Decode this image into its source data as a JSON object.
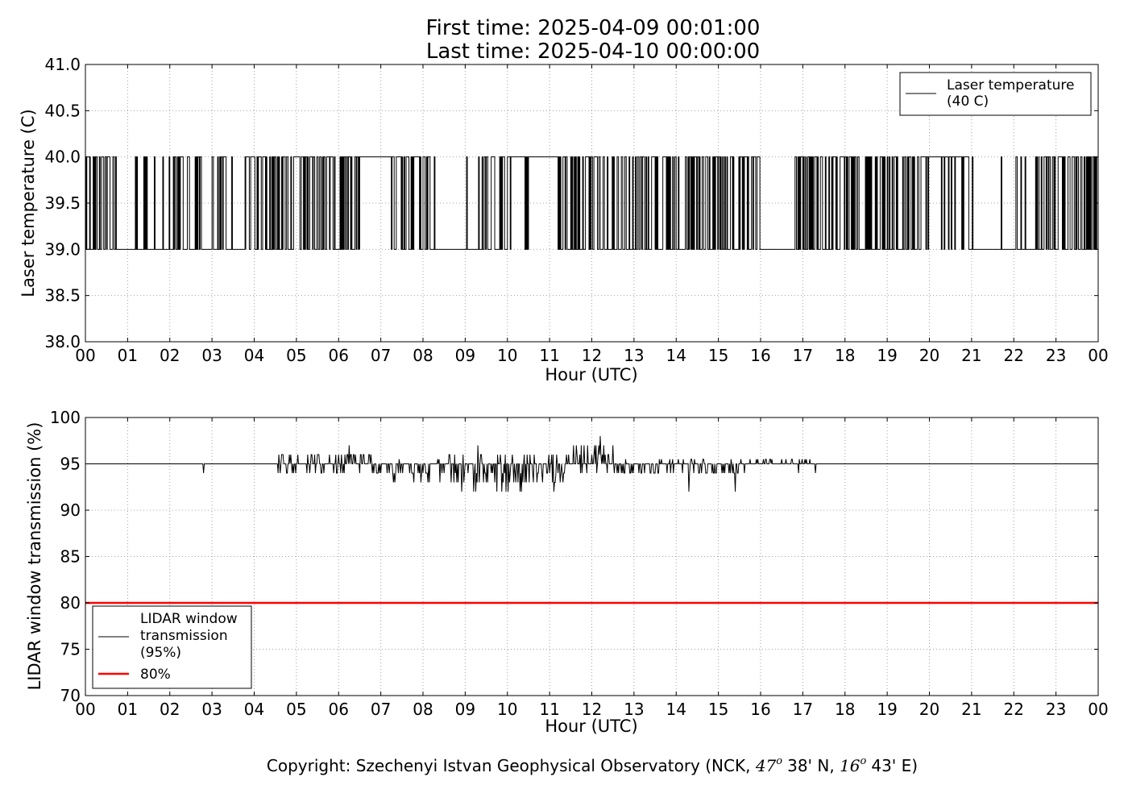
{
  "header": {
    "first_time": "First time: 2025-04-09 00:01:00",
    "last_time": "Last time: 2025-04-10 00:00:00"
  },
  "footer": {
    "prefix": "Copyright: Szechenyi Istvan Geophysical Observatory (NCK, ",
    "lat_deg": "47",
    "lat_min": "38' N, ",
    "lon_deg": "16",
    "lon_min": "43' E)",
    "degree_mark": "o"
  },
  "colors": {
    "series": "#000000",
    "threshold": "#ff0000",
    "grid": "#a0a0a0"
  },
  "chart_data": [
    {
      "type": "line",
      "ylabel": "Laser temperature (C)",
      "xlabel": "Hour (UTC)",
      "xlim": [
        0,
        24
      ],
      "ylim": [
        38.0,
        41.0
      ],
      "yticks": [
        "38.0",
        "38.5",
        "39.0",
        "39.5",
        "40.0",
        "40.5",
        "41.0"
      ],
      "xticks": [
        "00",
        "01",
        "02",
        "03",
        "04",
        "05",
        "06",
        "07",
        "08",
        "09",
        "10",
        "11",
        "12",
        "13",
        "14",
        "15",
        "16",
        "17",
        "18",
        "19",
        "20",
        "21",
        "22",
        "23",
        "00"
      ],
      "grid": true,
      "legend_position": "top-right",
      "legend": [
        "Laser temperature",
        "(40 C)"
      ],
      "series": [
        {
          "name": "Laser temperature (40 C)",
          "levels": [
            39.0,
            40.0
          ],
          "description_note": "series toggles between 39.0 and 40.0",
          "segments": [
            {
              "start": 0.0,
              "end": 0.75,
              "kind": "toggle"
            },
            {
              "start": 0.75,
              "end": 1.15,
              "kind": "low"
            },
            {
              "start": 1.15,
              "end": 1.95,
              "kind": "sparse"
            },
            {
              "start": 1.95,
              "end": 2.75,
              "kind": "toggle"
            },
            {
              "start": 2.75,
              "end": 3.0,
              "kind": "low"
            },
            {
              "start": 3.0,
              "end": 3.3,
              "kind": "toggle"
            },
            {
              "start": 3.3,
              "end": 3.8,
              "kind": "sparse"
            },
            {
              "start": 3.8,
              "end": 6.5,
              "kind": "dense"
            },
            {
              "start": 6.5,
              "end": 7.25,
              "kind": "high"
            },
            {
              "start": 7.25,
              "end": 8.35,
              "kind": "toggle"
            },
            {
              "start": 8.35,
              "end": 9.0,
              "kind": "low"
            },
            {
              "start": 9.0,
              "end": 9.6,
              "kind": "sparse"
            },
            {
              "start": 9.6,
              "end": 10.0,
              "kind": "toggle"
            },
            {
              "start": 10.0,
              "end": 10.6,
              "kind": "mostly_high"
            },
            {
              "start": 10.6,
              "end": 11.2,
              "kind": "high"
            },
            {
              "start": 11.2,
              "end": 16.0,
              "kind": "toggle"
            },
            {
              "start": 16.0,
              "end": 16.8,
              "kind": "low"
            },
            {
              "start": 16.8,
              "end": 19.8,
              "kind": "toggle"
            },
            {
              "start": 19.8,
              "end": 20.9,
              "kind": "mostly_high"
            },
            {
              "start": 20.9,
              "end": 21.1,
              "kind": "sparse"
            },
            {
              "start": 21.1,
              "end": 21.7,
              "kind": "low"
            },
            {
              "start": 21.7,
              "end": 22.6,
              "kind": "sparse"
            },
            {
              "start": 22.6,
              "end": 24.0,
              "kind": "toggle"
            }
          ]
        }
      ]
    },
    {
      "type": "line",
      "ylabel": "LIDAR window transmission (%)",
      "xlabel": "Hour (UTC)",
      "xlim": [
        0,
        24
      ],
      "ylim": [
        70,
        100
      ],
      "yticks": [
        "70",
        "75",
        "80",
        "85",
        "90",
        "95",
        "100"
      ],
      "xticks": [
        "00",
        "01",
        "02",
        "03",
        "04",
        "05",
        "06",
        "07",
        "08",
        "09",
        "10",
        "11",
        "12",
        "13",
        "14",
        "15",
        "16",
        "17",
        "18",
        "19",
        "20",
        "21",
        "22",
        "23",
        "00"
      ],
      "grid": true,
      "legend_position": "bottom-left",
      "legend": [
        {
          "lines": [
            "LIDAR window",
            "transmission",
            "(95%)"
          ],
          "color": "#000000"
        },
        {
          "lines": [
            "80%"
          ],
          "color": "#ff0000"
        }
      ],
      "series": [
        {
          "name": "LIDAR window transmission (95%)",
          "baseline": 95,
          "noisy_ranges": [
            {
              "start": 4.45,
              "end": 6.8,
              "min": 94,
              "max": 96.5
            },
            {
              "start": 6.8,
              "end": 8.6,
              "min": 93,
              "max": 96
            },
            {
              "start": 8.6,
              "end": 11.4,
              "min": 92,
              "max": 96.5
            },
            {
              "start": 11.4,
              "end": 12.5,
              "min": 94,
              "max": 97.5
            },
            {
              "start": 12.5,
              "end": 15.7,
              "min": 93.5,
              "max": 96
            },
            {
              "start": 15.7,
              "end": 17.3,
              "min": 94.5,
              "max": 96
            }
          ],
          "spikes": [
            {
              "x": 2.8,
              "y": 94
            },
            {
              "x": 6.25,
              "y": 97
            },
            {
              "x": 9.3,
              "y": 97
            },
            {
              "x": 12.2,
              "y": 98
            },
            {
              "x": 12.5,
              "y": 97
            },
            {
              "x": 14.3,
              "y": 92
            },
            {
              "x": 15.4,
              "y": 92
            },
            {
              "x": 16.9,
              "y": 94
            },
            {
              "x": 17.3,
              "y": 94
            }
          ]
        },
        {
          "name": "80%",
          "constant": 80
        }
      ]
    }
  ]
}
